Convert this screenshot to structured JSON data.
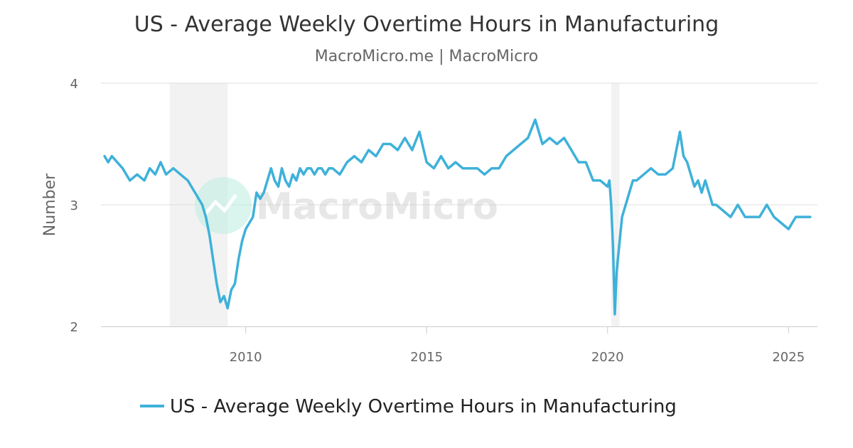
{
  "header": {
    "title": "US - Average Weekly Overtime Hours in Manufacturing",
    "subtitle": "MacroMicro.me | MacroMicro"
  },
  "watermark": {
    "text": "MacroMicro"
  },
  "colors": {
    "series": "#3eb1d9",
    "recession": "#f2f2f2",
    "grid": "#dddddd",
    "axis": "#cccccc",
    "watermark_circle": "#bfeee2"
  },
  "chart_data": {
    "type": "line",
    "title": "US - Average Weekly Overtime Hours in Manufacturing",
    "subtitle": "MacroMicro.me | MacroMicro",
    "xlabel": "",
    "ylabel": "Number",
    "x_axis_type": "year",
    "xlim": [
      2006.0,
      2025.8
    ],
    "ylim": [
      2,
      4
    ],
    "x_ticks": [
      2010,
      2015,
      2020,
      2025
    ],
    "x_tick_labels": [
      "2010",
      "2015",
      "2020",
      "2025"
    ],
    "y_ticks": [
      2,
      3,
      4
    ],
    "y_tick_labels": [
      "2",
      "3",
      "4"
    ],
    "grid": true,
    "legend": {
      "position": "bottom",
      "entries": [
        "US - Average Weekly Overtime Hours in Manufacturing"
      ]
    },
    "recession_bands": [
      [
        2007.9,
        2009.5
      ],
      [
        2020.1,
        2020.33
      ]
    ],
    "series": [
      {
        "name": "US - Average Weekly Overtime Hours in Manufacturing",
        "x": [
          2006.1,
          2006.2,
          2006.3,
          2006.6,
          2006.8,
          2007.0,
          2007.2,
          2007.35,
          2007.5,
          2007.65,
          2007.8,
          2008.0,
          2008.2,
          2008.4,
          2008.6,
          2008.8,
          2008.9,
          2009.0,
          2009.1,
          2009.2,
          2009.3,
          2009.4,
          2009.5,
          2009.6,
          2009.7,
          2009.8,
          2009.9,
          2010.0,
          2010.1,
          2010.2,
          2010.3,
          2010.4,
          2010.5,
          2010.6,
          2010.7,
          2010.8,
          2010.9,
          2011.0,
          2011.1,
          2011.2,
          2011.3,
          2011.4,
          2011.5,
          2011.6,
          2011.7,
          2011.8,
          2011.9,
          2012.0,
          2012.1,
          2012.2,
          2012.3,
          2012.4,
          2012.6,
          2012.8,
          2013.0,
          2013.2,
          2013.4,
          2013.6,
          2013.8,
          2014.0,
          2014.2,
          2014.4,
          2014.6,
          2014.8,
          2015.0,
          2015.2,
          2015.4,
          2015.6,
          2015.8,
          2016.0,
          2016.2,
          2016.4,
          2016.6,
          2016.8,
          2017.0,
          2017.2,
          2017.4,
          2017.6,
          2017.8,
          2018.0,
          2018.2,
          2018.4,
          2018.6,
          2018.8,
          2019.0,
          2019.2,
          2019.4,
          2019.6,
          2019.8,
          2020.0,
          2020.05,
          2020.1,
          2020.15,
          2020.2,
          2020.25,
          2020.3,
          2020.4,
          2020.5,
          2020.6,
          2020.7,
          2020.8,
          2021.0,
          2021.2,
          2021.4,
          2021.6,
          2021.8,
          2022.0,
          2022.1,
          2022.2,
          2022.3,
          2022.4,
          2022.5,
          2022.6,
          2022.7,
          2022.8,
          2022.9,
          2023.0,
          2023.2,
          2023.4,
          2023.6,
          2023.8,
          2024.0,
          2024.2,
          2024.4,
          2024.6,
          2024.8,
          2025.0,
          2025.2,
          2025.4,
          2025.6
        ],
        "values": [
          3.4,
          3.35,
          3.4,
          3.3,
          3.2,
          3.25,
          3.2,
          3.3,
          3.25,
          3.35,
          3.25,
          3.3,
          3.25,
          3.2,
          3.1,
          3.0,
          2.9,
          2.75,
          2.55,
          2.35,
          2.2,
          2.25,
          2.15,
          2.3,
          2.35,
          2.55,
          2.7,
          2.8,
          2.85,
          2.9,
          3.1,
          3.05,
          3.1,
          3.2,
          3.3,
          3.2,
          3.15,
          3.3,
          3.2,
          3.15,
          3.25,
          3.2,
          3.3,
          3.25,
          3.3,
          3.3,
          3.25,
          3.3,
          3.3,
          3.25,
          3.3,
          3.3,
          3.25,
          3.35,
          3.4,
          3.35,
          3.45,
          3.4,
          3.5,
          3.5,
          3.45,
          3.55,
          3.45,
          3.6,
          3.35,
          3.3,
          3.4,
          3.3,
          3.35,
          3.3,
          3.3,
          3.3,
          3.25,
          3.3,
          3.3,
          3.4,
          3.45,
          3.5,
          3.55,
          3.7,
          3.5,
          3.55,
          3.5,
          3.55,
          3.45,
          3.35,
          3.35,
          3.2,
          3.2,
          3.15,
          3.2,
          3.0,
          2.65,
          2.1,
          2.45,
          2.6,
          2.9,
          3.0,
          3.1,
          3.2,
          3.2,
          3.25,
          3.3,
          3.25,
          3.25,
          3.3,
          3.6,
          3.4,
          3.35,
          3.25,
          3.15,
          3.2,
          3.1,
          3.2,
          3.1,
          3.0,
          3.0,
          2.95,
          2.9,
          3.0,
          2.9,
          2.9,
          2.9,
          3.0,
          2.9,
          2.85,
          2.8,
          2.9,
          2.9,
          2.9
        ]
      }
    ]
  }
}
